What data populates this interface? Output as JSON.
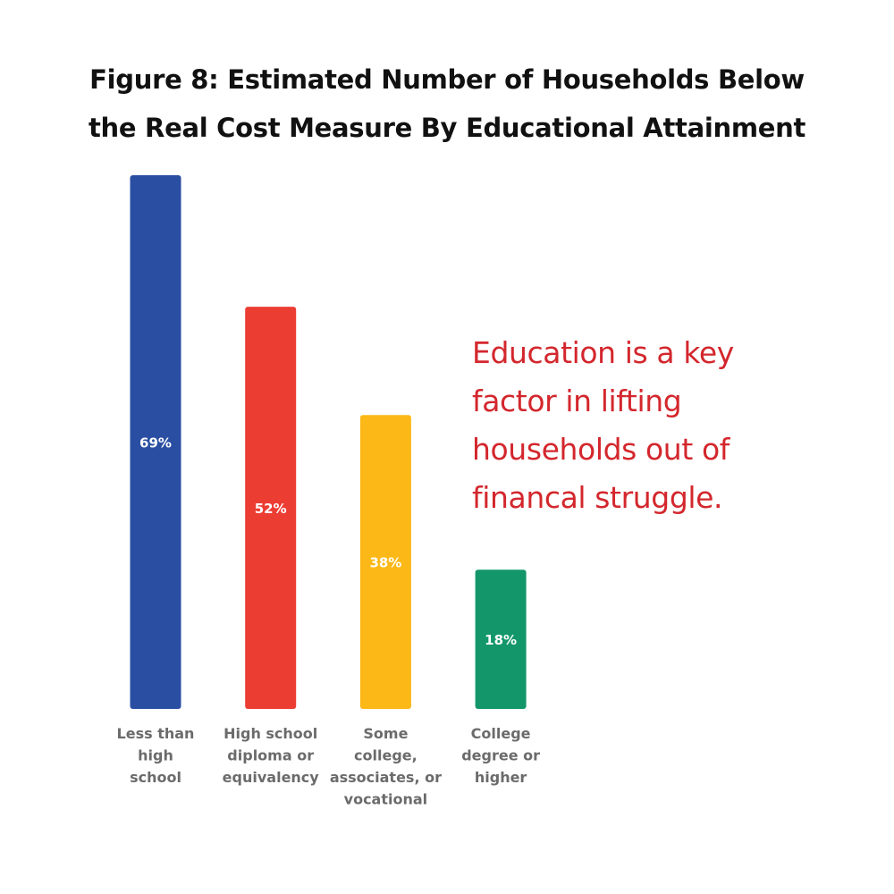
{
  "title_lines": [
    "Figure 8: Estimated Number of Households Below",
    "the Real Cost Measure By Educational Attainment"
  ],
  "callout_lines": [
    "Education is a key",
    "factor in lifting",
    "households out of",
    "financal struggle."
  ],
  "colors": {
    "title": "#111111",
    "callout": "#d3272d",
    "category_label": "#6b6b6b",
    "value_label": "#ffffff"
  },
  "chart_data": {
    "type": "bar",
    "title": "Figure 8: Estimated Number of Households Below the Real Cost Measure By Educational Attainment",
    "xlabel": "",
    "ylabel": "",
    "ylim": [
      0,
      69
    ],
    "grid": false,
    "legend": "none",
    "categories": [
      [
        "Less than",
        "high",
        "school"
      ],
      [
        "High school",
        "diploma or",
        "equivalency"
      ],
      [
        "Some",
        "college,",
        "associates, or",
        "vocational"
      ],
      [
        "College",
        "degree or",
        "higher"
      ]
    ],
    "values": [
      69,
      52,
      38,
      18
    ],
    "value_labels": [
      "69%",
      "52%",
      "38%",
      "18%"
    ],
    "bar_colors": [
      "#2a4ea2",
      "#ec3d33",
      "#fcb816",
      "#13976a"
    ]
  }
}
